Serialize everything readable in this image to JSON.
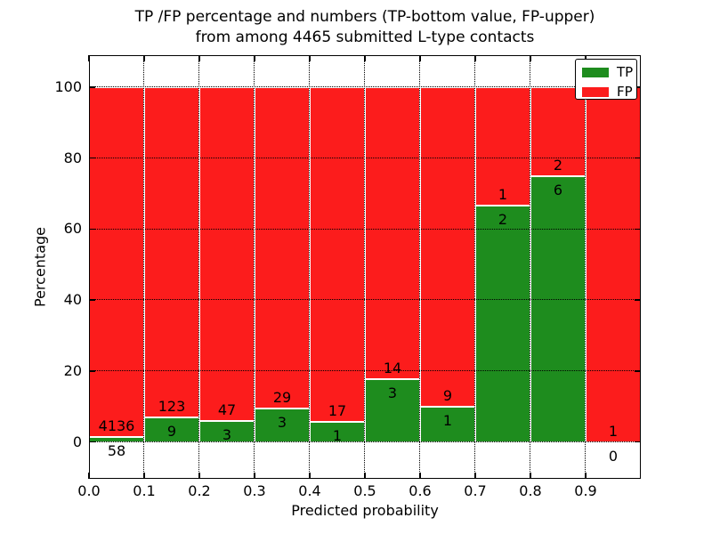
{
  "title": {
    "line1": "TP /FP percentage and numbers (TP-bottom value, FP-upper)",
    "line2": "from among 4465 submitted L-type contacts"
  },
  "chart_data": {
    "type": "bar",
    "subtype": "stacked-percentage-histogram",
    "title": "TP /FP percentage and numbers (TP-bottom value, FP-upper) from among 4465 submitted L-type contacts",
    "xlabel": "Predicted probability",
    "ylabel": "Percentage",
    "xlim": [
      0.0,
      1.0
    ],
    "ylim": [
      -10.4,
      109.0
    ],
    "x_tick_values": [
      0.0,
      0.1,
      0.2,
      0.3,
      0.4,
      0.5,
      0.6,
      0.7,
      0.8,
      0.9
    ],
    "x_tick_labels": [
      "0.0",
      "0.1",
      "0.2",
      "0.3",
      "0.4",
      "0.5",
      "0.6",
      "0.7",
      "0.8",
      "0.9"
    ],
    "y_tick_values": [
      0,
      20,
      40,
      60,
      80,
      100
    ],
    "grid": "dotted",
    "colors": {
      "tp": "#1e8c1e",
      "fp": "#fc1c1c"
    },
    "legend": {
      "position": "upper-right",
      "entries": [
        {
          "label": "TP",
          "color_key": "tp"
        },
        {
          "label": "FP",
          "color_key": "fp"
        }
      ]
    },
    "bins": [
      {
        "x0": 0.0,
        "x1": 0.1,
        "tp": 58,
        "fp": 4136
      },
      {
        "x0": 0.1,
        "x1": 0.2,
        "tp": 9,
        "fp": 123
      },
      {
        "x0": 0.2,
        "x1": 0.3,
        "tp": 3,
        "fp": 47
      },
      {
        "x0": 0.3,
        "x1": 0.4,
        "tp": 3,
        "fp": 29
      },
      {
        "x0": 0.4,
        "x1": 0.5,
        "tp": 1,
        "fp": 17
      },
      {
        "x0": 0.5,
        "x1": 0.6,
        "tp": 3,
        "fp": 14
      },
      {
        "x0": 0.6,
        "x1": 0.7,
        "tp": 1,
        "fp": 9
      },
      {
        "x0": 0.7,
        "x1": 0.8,
        "tp": 2,
        "fp": 1
      },
      {
        "x0": 0.8,
        "x1": 0.9,
        "tp": 6,
        "fp": 2
      },
      {
        "x0": 0.9,
        "x1": 1.0,
        "tp": 0,
        "fp": 1
      }
    ],
    "total_contacts": 4465
  }
}
